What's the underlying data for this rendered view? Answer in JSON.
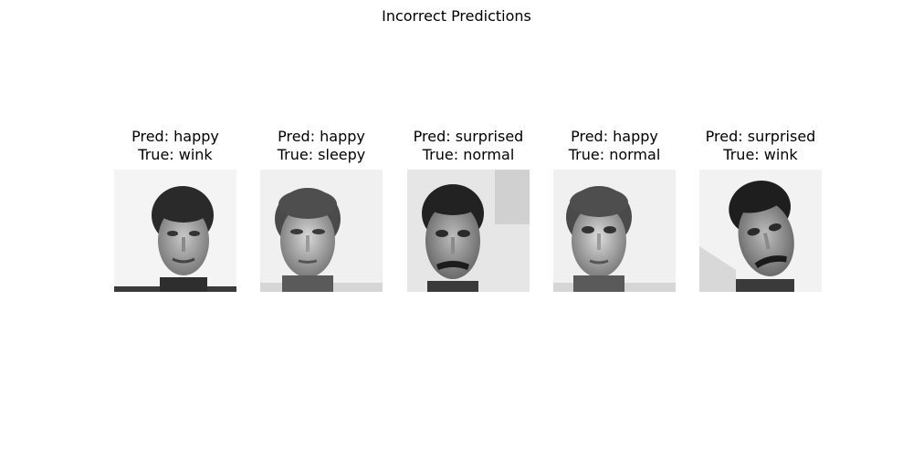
{
  "figure": {
    "title": "Incorrect Predictions"
  },
  "panels": [
    {
      "pred": "Pred: happy",
      "true": "True: wink",
      "image": "face-grayscale",
      "variant": "tilt-left"
    },
    {
      "pred": "Pred: happy",
      "true": "True: sleepy",
      "image": "face-grayscale",
      "variant": "frontal"
    },
    {
      "pred": "Pred: surprised",
      "true": "True: normal",
      "image": "face-grayscale",
      "variant": "mustache"
    },
    {
      "pred": "Pred: happy",
      "true": "True: normal",
      "image": "face-grayscale",
      "variant": "frontal"
    },
    {
      "pred": "Pred: surprised",
      "true": "True: wink",
      "image": "face-grayscale",
      "variant": "mustache-tilt"
    }
  ]
}
